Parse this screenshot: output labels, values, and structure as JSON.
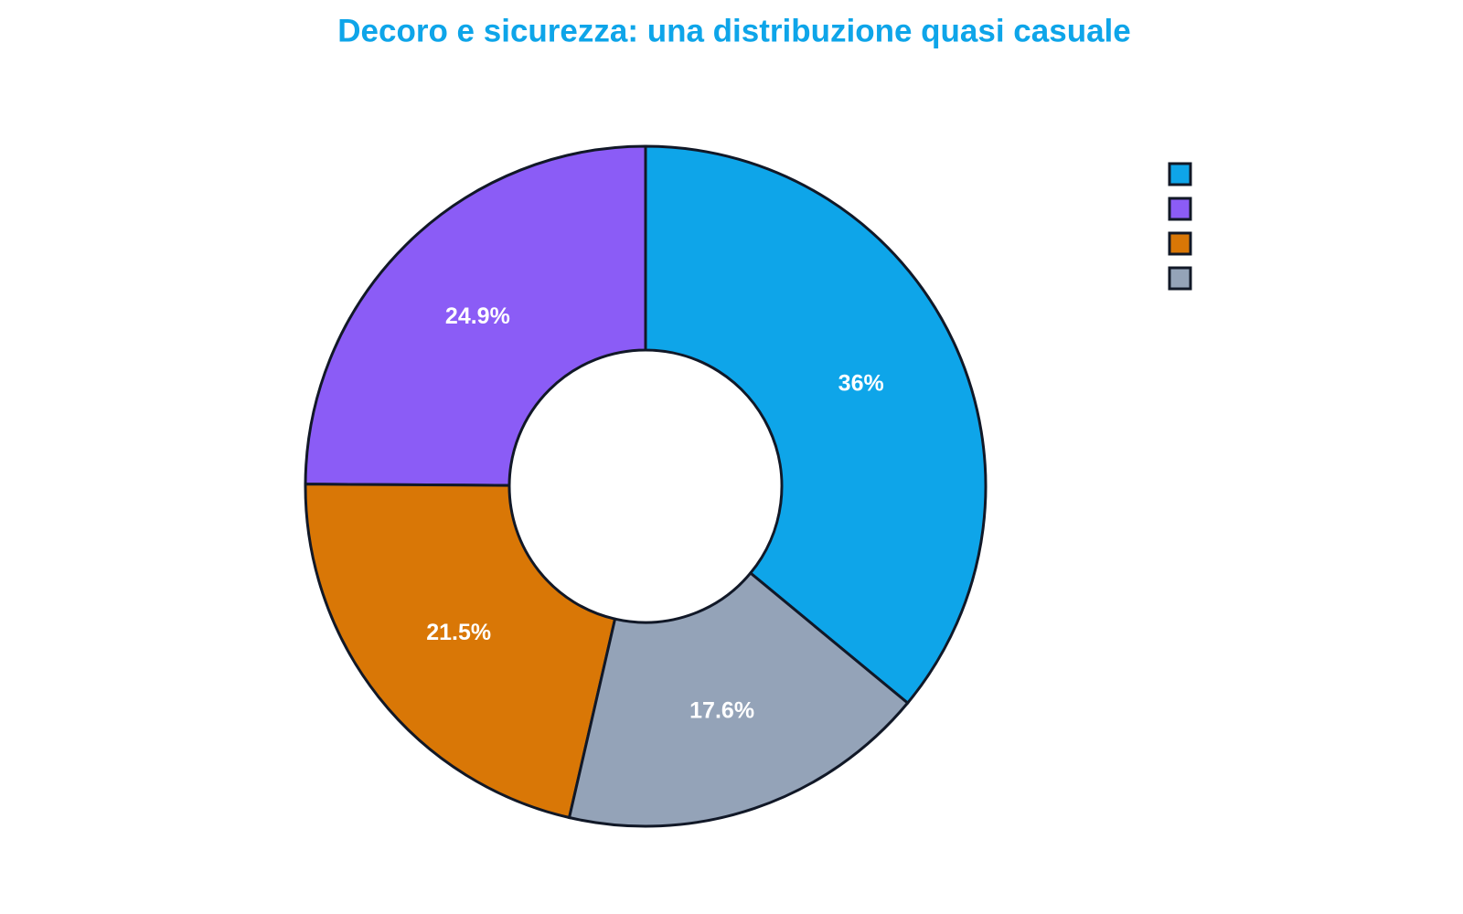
{
  "chart_data": {
    "type": "donut",
    "title": "Decoro e sicurezza: una distribuzione quasi casuale",
    "categories": [
      null,
      null,
      null,
      null
    ],
    "values": [
      36,
      24.9,
      21.5,
      17.6
    ],
    "value_labels": [
      "36%",
      "24.9%",
      "21.5%",
      "17.6%"
    ],
    "colors": [
      "#0ea5e9",
      "#8b5cf6",
      "#d97706",
      "#94a3b8"
    ],
    "legend": "top-right"
  }
}
